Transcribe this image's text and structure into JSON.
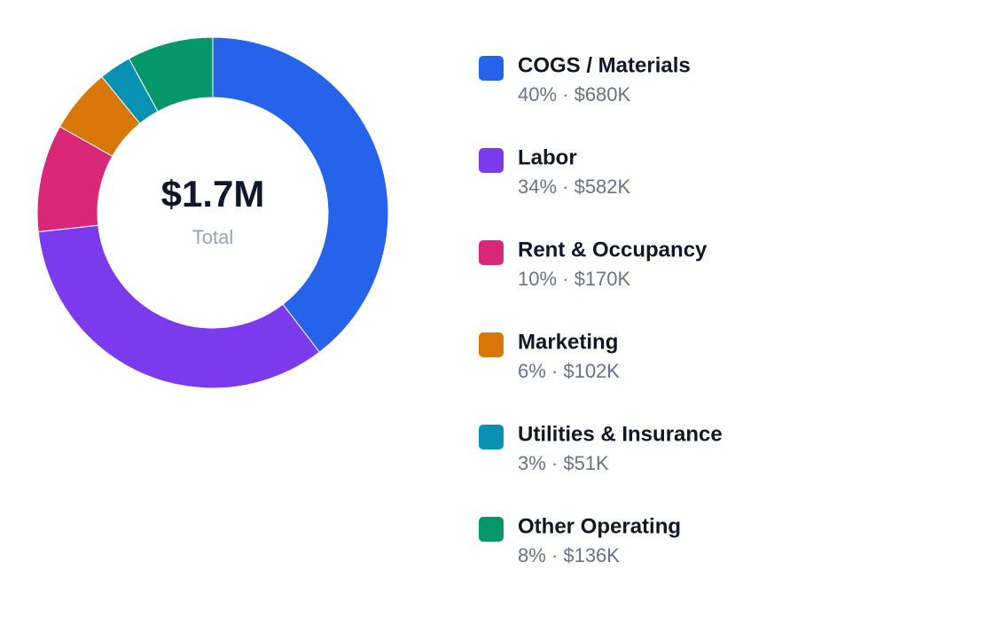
{
  "chart_data": {
    "type": "donut",
    "total_label": "$1.7M",
    "total_caption": "Total",
    "categories": [
      "COGS / Materials",
      "Labor",
      "Rent & Occupancy",
      "Marketing",
      "Utilities & Insurance",
      "Other Operating"
    ],
    "values": [
      40,
      34,
      10,
      6,
      3,
      8
    ],
    "value_labels": [
      "40% · $680K",
      "34% · $582K",
      "10% · $170K",
      "6% · $102K",
      "3% · $51K",
      "8% · $136K"
    ],
    "colors": [
      "#2563eb",
      "#7c3aed",
      "#db2777",
      "#d97706",
      "#0891b2",
      "#059669"
    ]
  }
}
